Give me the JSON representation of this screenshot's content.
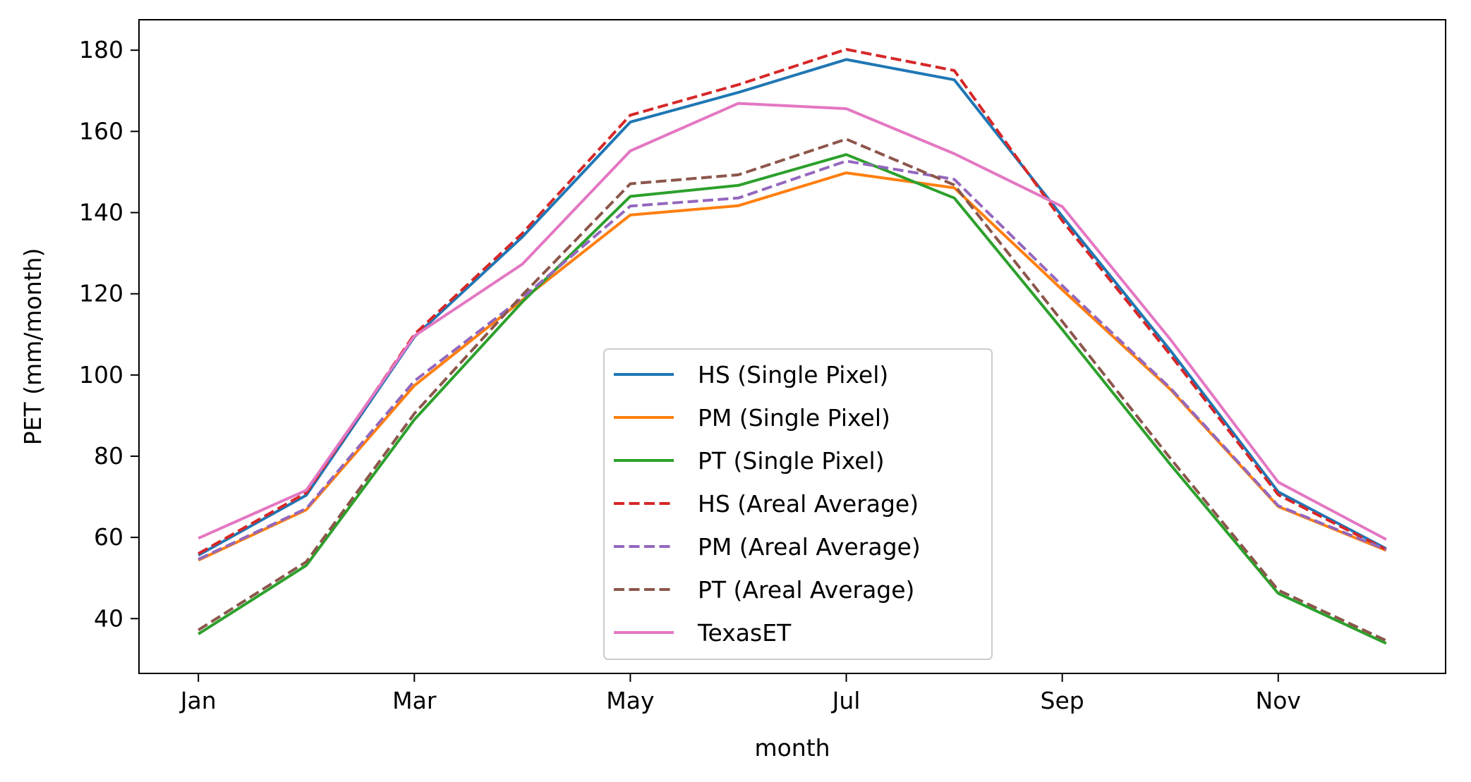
{
  "chart_data": {
    "type": "line",
    "title": "",
    "xlabel": "month",
    "ylabel": "PET (mm/month)",
    "x": [
      1,
      2,
      3,
      4,
      5,
      6,
      7,
      8,
      9,
      10,
      11,
      12
    ],
    "xticks": [
      {
        "x": 1,
        "label": "Jan"
      },
      {
        "x": 3,
        "label": "Mar"
      },
      {
        "x": 5,
        "label": "May"
      },
      {
        "x": 7,
        "label": "Jul"
      },
      {
        "x": 9,
        "label": "Sep"
      },
      {
        "x": 11,
        "label": "Nov"
      }
    ],
    "yticks": [
      40,
      60,
      80,
      100,
      120,
      140,
      160,
      180
    ],
    "xlim": [
      0.45,
      12.55
    ],
    "ylim": [
      26.5,
      187.5
    ],
    "grid": false,
    "legend_position": "lower-center",
    "series": [
      {
        "name": "HS (Single Pixel)",
        "color": "#1f77b4",
        "dash": "solid",
        "values": [
          55.6,
          70.4,
          109.4,
          134.0,
          162.3,
          169.6,
          177.7,
          172.7,
          139.1,
          106.1,
          71.2,
          57.2
        ]
      },
      {
        "name": "PM (Single Pixel)",
        "color": "#ff7f0e",
        "dash": "solid",
        "values": [
          54.4,
          66.8,
          97.4,
          118.5,
          139.4,
          141.7,
          149.8,
          146.1,
          121.0,
          96.5,
          67.6,
          56.8
        ]
      },
      {
        "name": "PT (Single Pixel)",
        "color": "#2ca02c",
        "dash": "solid",
        "values": [
          36.2,
          53.1,
          89.0,
          118.0,
          144.0,
          146.7,
          154.3,
          143.6,
          111.2,
          78.0,
          46.2,
          33.9
        ]
      },
      {
        "name": "HS (Areal Average)",
        "color": "#d62728",
        "dash": "dashed",
        "values": [
          56.0,
          71.0,
          110.0,
          134.9,
          164.0,
          171.5,
          180.2,
          175.0,
          138.0,
          105.0,
          70.5,
          57.0
        ]
      },
      {
        "name": "PM (Areal Average)",
        "color": "#9467bd",
        "dash": "dashed",
        "values": [
          54.6,
          67.1,
          98.5,
          119.0,
          141.6,
          143.6,
          152.7,
          148.2,
          122.0,
          96.8,
          67.8,
          57.0
        ]
      },
      {
        "name": "PT (Areal Average)",
        "color": "#8c564b",
        "dash": "dashed",
        "values": [
          37.2,
          54.0,
          90.5,
          119.7,
          147.1,
          149.3,
          158.1,
          146.8,
          113.2,
          79.5,
          47.0,
          34.6
        ]
      },
      {
        "name": "TexasET",
        "color": "#e377c2",
        "dash": "solid",
        "values": [
          59.8,
          71.6,
          109.6,
          127.3,
          155.2,
          166.9,
          165.6,
          154.5,
          141.5,
          108.8,
          73.6,
          59.5
        ]
      }
    ]
  }
}
